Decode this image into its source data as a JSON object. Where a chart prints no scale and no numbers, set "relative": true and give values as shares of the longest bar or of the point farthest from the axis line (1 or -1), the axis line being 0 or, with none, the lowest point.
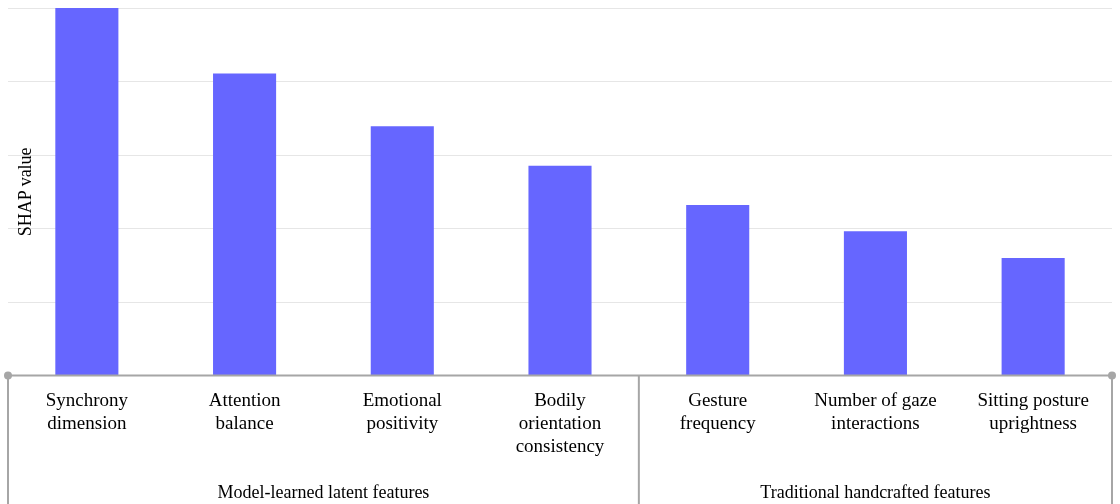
{
  "chart_data": {
    "type": "bar",
    "ylabel": "SHAP value",
    "relative": true,
    "grid": "y",
    "legend": false,
    "categories": [
      "Synchrony dimension",
      "Attention balance",
      "Emotional positivity",
      "Bodily orientation consistency",
      "Gesture frequency",
      "Number of gaze interactions",
      "Sitting posture uprightness"
    ],
    "values": [
      1,
      0.822,
      0.678,
      0.571,
      0.464,
      0.393,
      0.32
    ],
    "color": "#6666ff",
    "annotations": [
      "Model-learned latent features",
      "Traditional handcrafted features"
    ]
  }
}
